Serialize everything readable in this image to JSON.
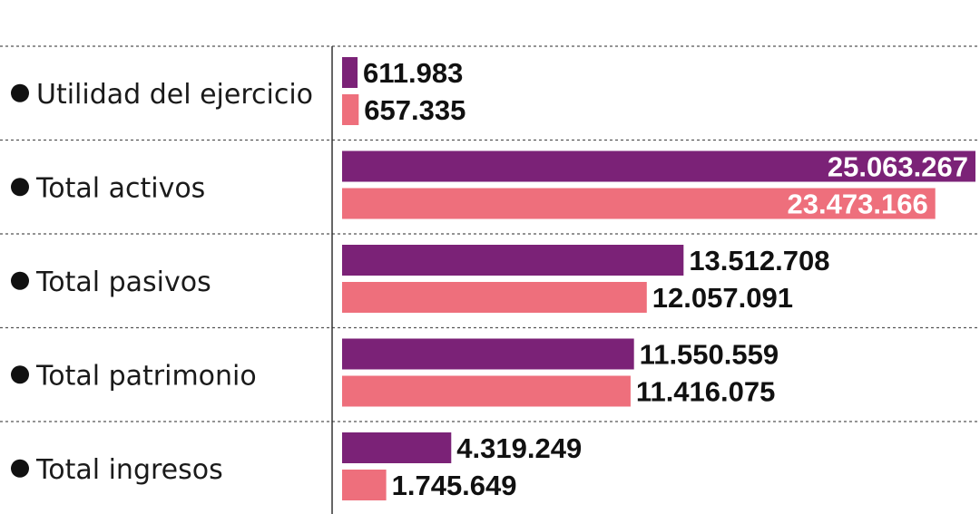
{
  "colors": {
    "series_1": "#7b2277",
    "series_2": "#ee6f7c",
    "text": "#111111",
    "inside_label": "#ffffff"
  },
  "chart_data": {
    "type": "bar",
    "orientation": "horizontal",
    "title": "",
    "xlabel": "",
    "ylabel": "",
    "grid": false,
    "xlim": [
      0,
      25063267
    ],
    "categories": [
      "Utilidad del ejercicio",
      "Total activos",
      "Total pasivos",
      "Total patrimonio",
      "Total ingresos"
    ],
    "series": [
      {
        "values": [
          611983,
          25063267,
          13512708,
          11550559,
          4319249
        ],
        "labels": [
          "611.983",
          "25.063.267",
          "13.512.708",
          "11.550.559",
          "4.319.249"
        ]
      },
      {
        "values": [
          657335,
          23473166,
          12057091,
          11416075,
          1745649
        ],
        "labels": [
          "657.335",
          "23.473.166",
          "12.057.091",
          "11.416.075",
          "1.745.649"
        ]
      }
    ]
  }
}
